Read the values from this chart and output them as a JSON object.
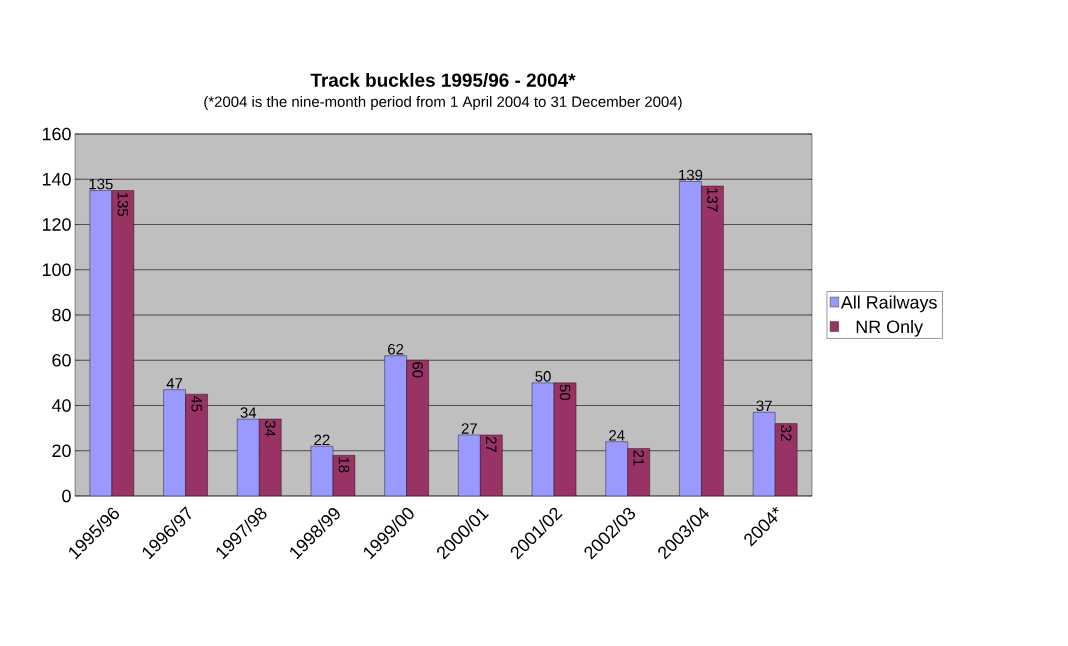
{
  "chart_data": {
    "type": "bar",
    "title": "Track buckles 1995/96 - 2004*",
    "subtitle": "(*2004 is the nine-month period from 1 April 2004 to 31 December 2004)",
    "categories": [
      "1995/96",
      "1996/97",
      "1997/98",
      "1998/99",
      "1999/00",
      "2000/01",
      "2001/02",
      "2002/03",
      "2003/04",
      "2004*"
    ],
    "series": [
      {
        "name": "All Railways",
        "color": "#9999ff",
        "values": [
          135,
          47,
          34,
          22,
          62,
          27,
          50,
          24,
          139,
          37
        ]
      },
      {
        "name": "NR Only",
        "color": "#993366",
        "values": [
          135,
          45,
          34,
          18,
          60,
          27,
          50,
          21,
          137,
          32
        ]
      }
    ],
    "ylim": [
      0,
      160
    ],
    "yticks": [
      0,
      20,
      40,
      60,
      80,
      100,
      120,
      140,
      160
    ],
    "grid": "y",
    "legend": "right",
    "data_labels": true
  }
}
